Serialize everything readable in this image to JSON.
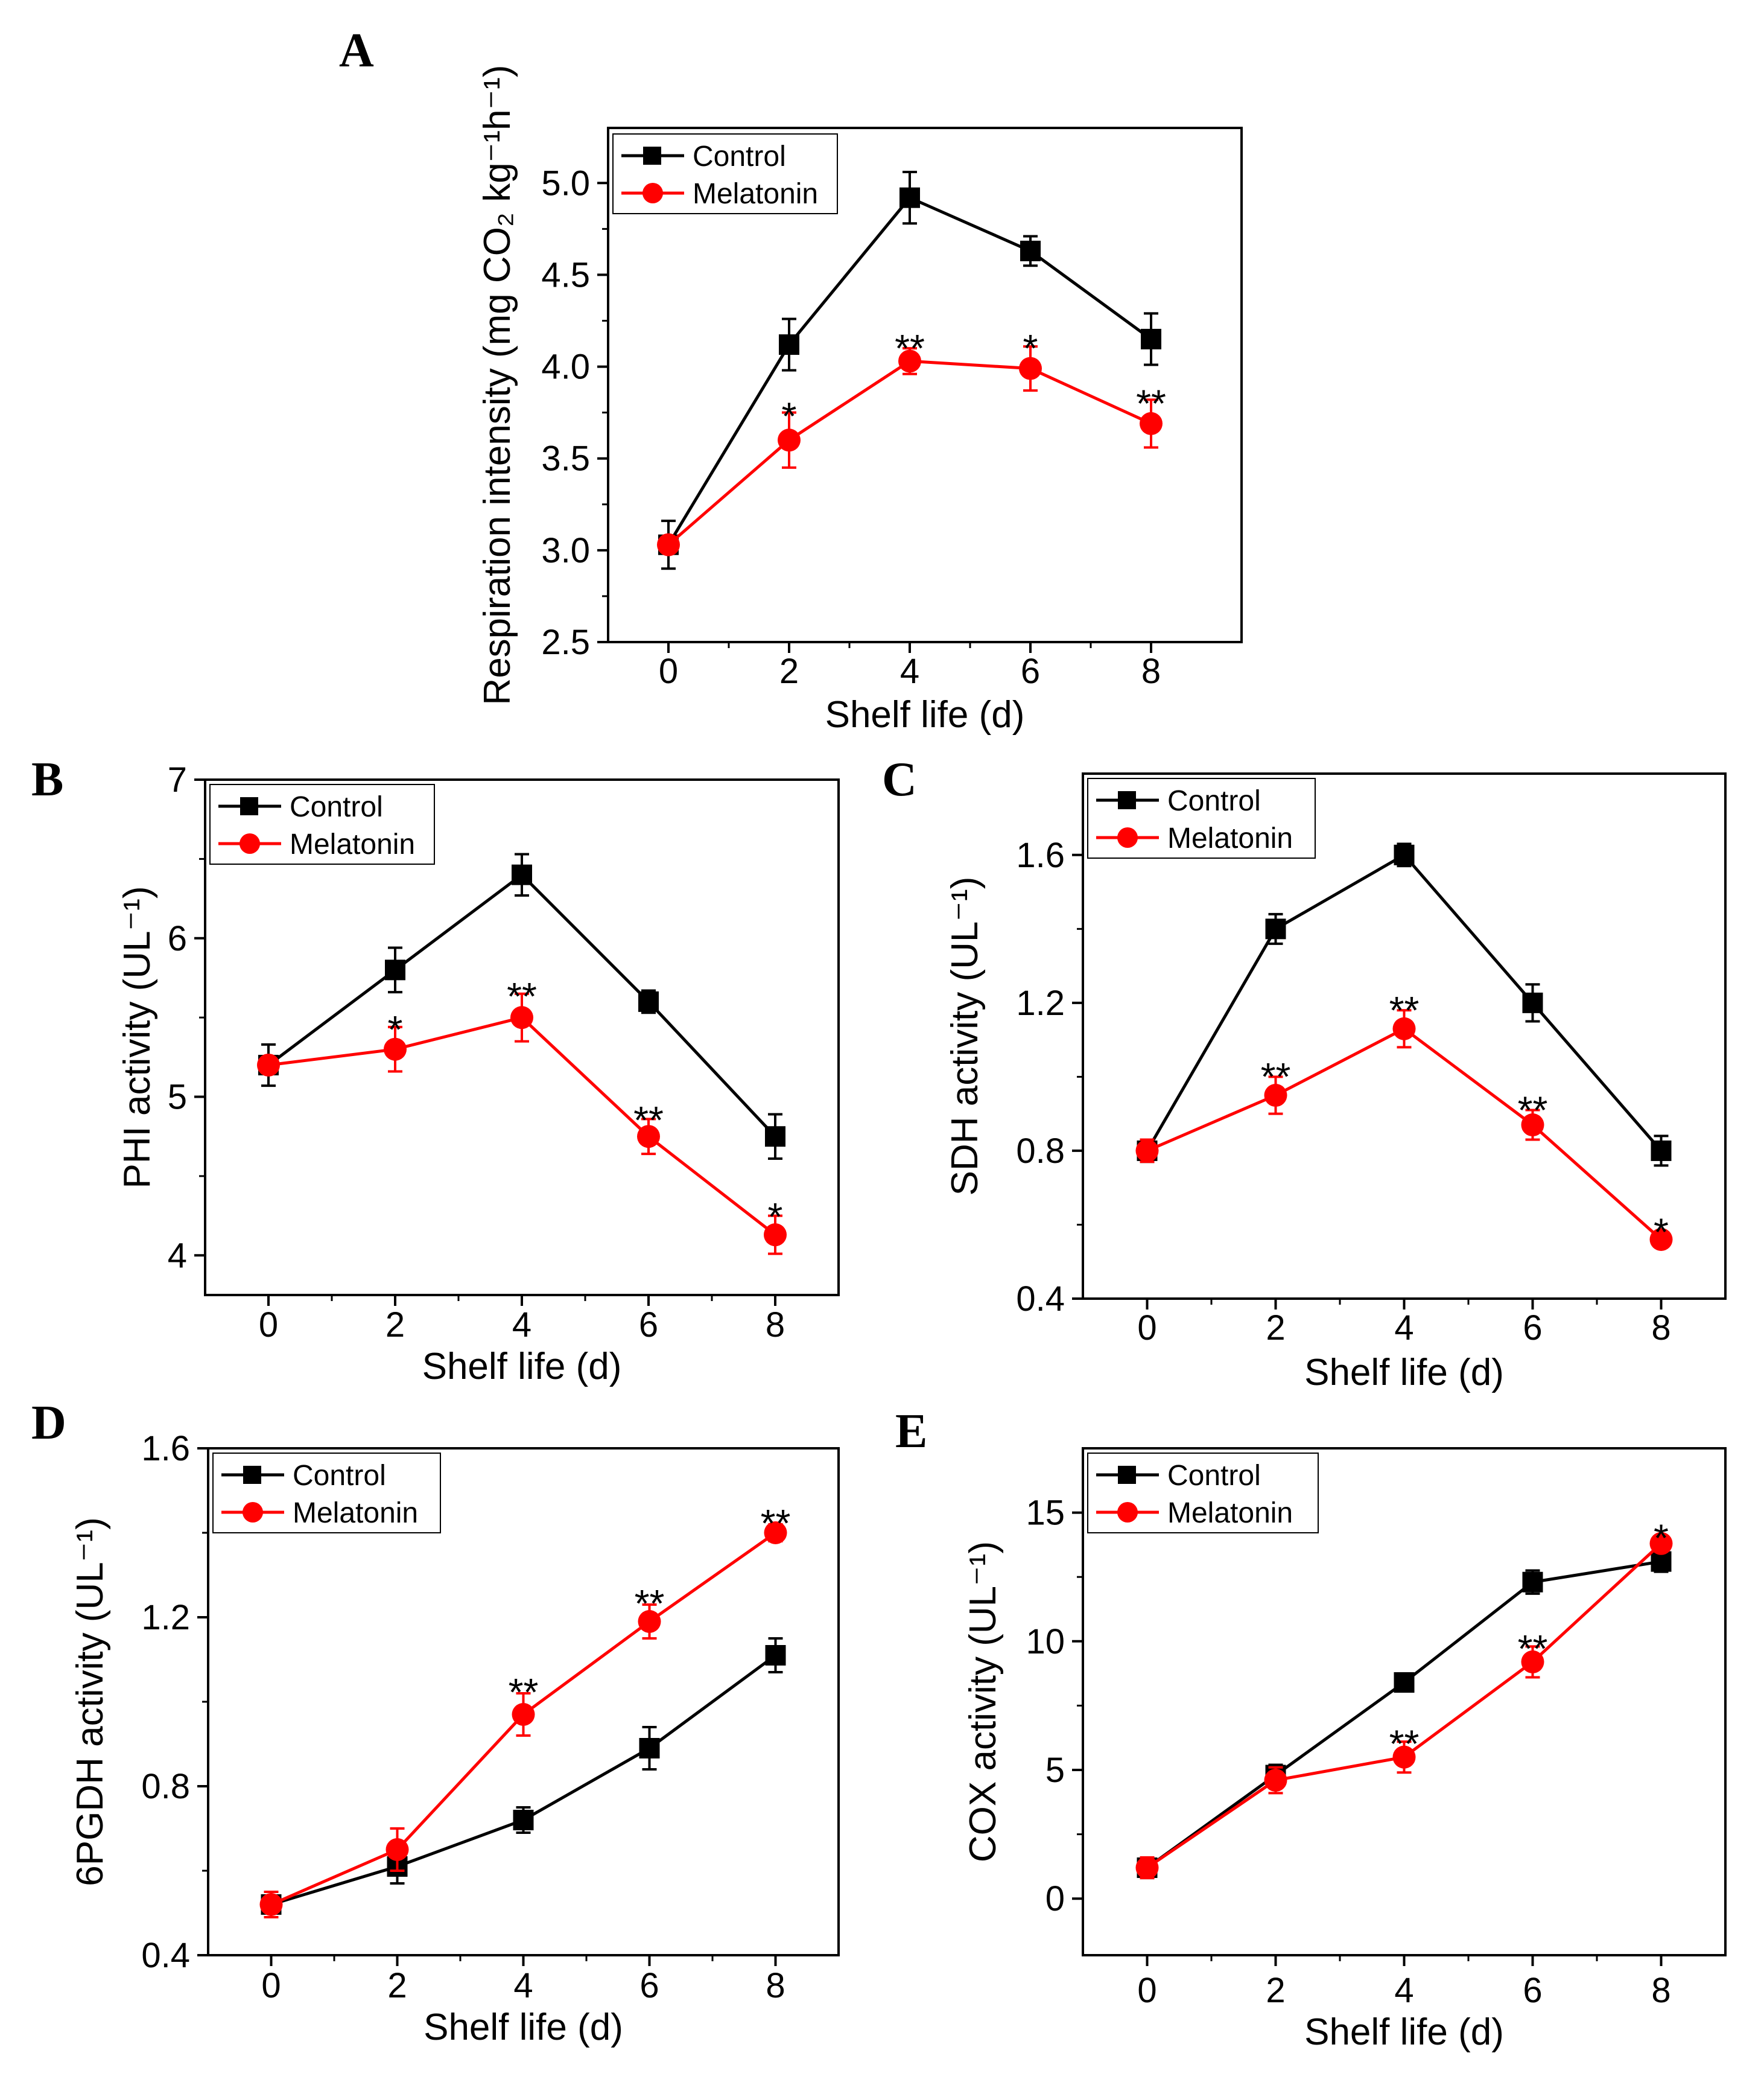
{
  "figure": {
    "panels": [
      "A",
      "B",
      "C",
      "D",
      "E"
    ]
  },
  "chart_data": [
    {
      "panel": "A",
      "type": "line",
      "title": "",
      "xlabel": "Shelf life (d)",
      "ylabel": "Respiration intensity (mg CO₂ kg⁻¹h⁻¹)",
      "x": [
        0,
        2,
        4,
        6,
        8
      ],
      "xlim": [
        -1,
        9.5
      ],
      "ylim": [
        2.5,
        5.3
      ],
      "xticks": [
        0,
        2,
        4,
        6,
        8
      ],
      "yticks": [
        2.5,
        3.0,
        3.5,
        4.0,
        4.5,
        5.0
      ],
      "ytick_labels": [
        "2.5",
        "3.0",
        "3.5",
        "4.0",
        "4.5",
        "5.0"
      ],
      "legend": "top-left",
      "series": [
        {
          "name": "Control",
          "color": "#000000",
          "marker": "square",
          "values": [
            3.03,
            4.12,
            4.92,
            4.63,
            4.15
          ],
          "errors": [
            0.13,
            0.14,
            0.14,
            0.08,
            0.14
          ]
        },
        {
          "name": "Melatonin",
          "color": "#ff0000",
          "marker": "circle",
          "values": [
            3.03,
            3.6,
            4.03,
            3.99,
            3.69
          ],
          "errors": [
            0.04,
            0.15,
            0.07,
            0.12,
            0.13
          ]
        }
      ],
      "annotations": [
        {
          "x": 2,
          "text": "*",
          "anchor_y": 3.77
        },
        {
          "x": 4,
          "text": "**",
          "anchor_y": 4.14
        },
        {
          "x": 6,
          "text": "*",
          "anchor_y": 4.14
        },
        {
          "x": 8,
          "text": "**",
          "anchor_y": 3.84
        }
      ]
    },
    {
      "panel": "B",
      "type": "line",
      "title": "",
      "xlabel": "Shelf life (d)",
      "ylabel": "PHI activity (UL⁻¹)",
      "x": [
        0,
        2,
        4,
        6,
        8
      ],
      "xlim": [
        -1,
        9
      ],
      "ylim": [
        3.75,
        7
      ],
      "xticks": [
        0,
        2,
        4,
        6,
        8
      ],
      "yticks": [
        4,
        5,
        6,
        7
      ],
      "ytick_labels": [
        "4",
        "5",
        "6",
        "7"
      ],
      "legend": "top-left",
      "series": [
        {
          "name": "Control",
          "color": "#000000",
          "marker": "square",
          "values": [
            5.2,
            5.8,
            6.4,
            5.6,
            4.75
          ],
          "errors": [
            0.13,
            0.14,
            0.13,
            0.07,
            0.14
          ]
        },
        {
          "name": "Melatonin",
          "color": "#ff0000",
          "marker": "circle",
          "values": [
            5.2,
            5.3,
            5.5,
            4.75,
            4.13
          ],
          "errors": [
            0.05,
            0.14,
            0.15,
            0.11,
            0.12
          ]
        }
      ],
      "annotations": [
        {
          "x": 2,
          "text": "*",
          "anchor_y": 5.47
        },
        {
          "x": 4,
          "text": "**",
          "anchor_y": 5.68
        },
        {
          "x": 6,
          "text": "**",
          "anchor_y": 4.9
        },
        {
          "x": 8,
          "text": "*",
          "anchor_y": 4.29
        }
      ]
    },
    {
      "panel": "C",
      "type": "line",
      "title": "",
      "xlabel": "Shelf life (d)",
      "ylabel": "SDH activity (UL⁻¹)",
      "x": [
        0,
        2,
        4,
        6,
        8
      ],
      "xlim": [
        -1,
        9
      ],
      "ylim": [
        0.4,
        1.82
      ],
      "xticks": [
        0,
        2,
        4,
        6,
        8
      ],
      "yticks": [
        0.4,
        0.8,
        1.2,
        1.6
      ],
      "ytick_labels": [
        "0.4",
        "0.8",
        "1.2",
        "1.6"
      ],
      "legend": "top-left",
      "series": [
        {
          "name": "Control",
          "color": "#000000",
          "marker": "square",
          "values": [
            0.8,
            1.4,
            1.6,
            1.2,
            0.8
          ],
          "errors": [
            0.03,
            0.04,
            0.03,
            0.05,
            0.04
          ]
        },
        {
          "name": "Melatonin",
          "color": "#ff0000",
          "marker": "circle",
          "values": [
            0.8,
            0.95,
            1.13,
            0.87,
            0.56
          ],
          "errors": [
            0.03,
            0.05,
            0.05,
            0.04,
            0.02
          ]
        }
      ],
      "annotations": [
        {
          "x": 2,
          "text": "**",
          "anchor_y": 1.02
        },
        {
          "x": 4,
          "text": "**",
          "anchor_y": 1.2
        },
        {
          "x": 6,
          "text": "**",
          "anchor_y": 0.93
        },
        {
          "x": 8,
          "text": "*",
          "anchor_y": 0.6
        }
      ]
    },
    {
      "panel": "D",
      "type": "line",
      "title": "",
      "xlabel": "Shelf life (d)",
      "ylabel": "6PGDH activity (UL⁻¹)",
      "x": [
        0,
        2,
        4,
        6,
        8
      ],
      "xlim": [
        -1,
        9
      ],
      "ylim": [
        0.4,
        1.6
      ],
      "xticks": [
        0,
        2,
        4,
        6,
        8
      ],
      "yticks": [
        0.4,
        0.8,
        1.2,
        1.6
      ],
      "ytick_labels": [
        "0.4",
        "0.8",
        "1.2",
        "1.6"
      ],
      "legend": "top-left",
      "series": [
        {
          "name": "Control",
          "color": "#000000",
          "marker": "square",
          "values": [
            0.52,
            0.61,
            0.72,
            0.89,
            1.11
          ],
          "errors": [
            0.03,
            0.04,
            0.03,
            0.05,
            0.04
          ]
        },
        {
          "name": "Melatonin",
          "color": "#ff0000",
          "marker": "circle",
          "values": [
            0.52,
            0.65,
            0.97,
            1.19,
            1.4
          ],
          "errors": [
            0.03,
            0.05,
            0.05,
            0.04,
            0.02
          ]
        }
      ],
      "annotations": [
        {
          "x": 4,
          "text": "**",
          "anchor_y": 1.04
        },
        {
          "x": 6,
          "text": "**",
          "anchor_y": 1.25
        },
        {
          "x": 8,
          "text": "**",
          "anchor_y": 1.44
        }
      ]
    },
    {
      "panel": "E",
      "type": "line",
      "title": "",
      "xlabel": "Shelf life (d)",
      "ylabel": "COX activity (UL⁻¹)",
      "x": [
        0,
        2,
        4,
        6,
        8
      ],
      "xlim": [
        -1,
        9
      ],
      "ylim": [
        -2.2,
        17.5
      ],
      "xticks": [
        0,
        2,
        4,
        6,
        8
      ],
      "yticks": [
        0,
        5,
        10,
        15
      ],
      "ytick_labels": [
        "0",
        "5",
        "10",
        "15"
      ],
      "legend": "top-left",
      "series": [
        {
          "name": "Control",
          "color": "#000000",
          "marker": "square",
          "values": [
            1.2,
            4.8,
            8.4,
            12.3,
            13.1
          ],
          "errors": [
            0.4,
            0.4,
            0.35,
            0.45,
            0.4
          ]
        },
        {
          "name": "Melatonin",
          "color": "#ff0000",
          "marker": "circle",
          "values": [
            1.2,
            4.6,
            5.5,
            9.2,
            13.8
          ],
          "errors": [
            0.4,
            0.5,
            0.6,
            0.6,
            0.3
          ]
        }
      ],
      "annotations": [
        {
          "x": 4,
          "text": "**",
          "anchor_y": 6.3
        },
        {
          "x": 6,
          "text": "**",
          "anchor_y": 10.0
        },
        {
          "x": 8,
          "text": "*",
          "anchor_y": 14.3
        }
      ]
    }
  ]
}
